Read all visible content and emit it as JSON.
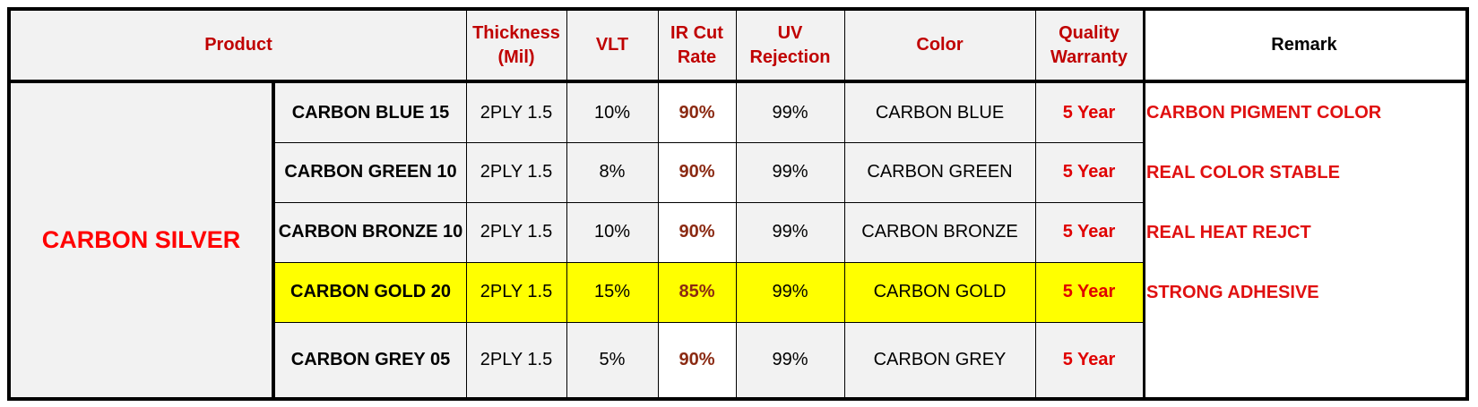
{
  "headers": {
    "product": "Product",
    "thickness": "Thickness (Mil)",
    "vlt": "VLT",
    "ir": "IR Cut Rate",
    "uv": "UV Rejection",
    "color": "Color",
    "warranty": "Quality Warranty",
    "remark": "Remark"
  },
  "group_name": "CARBON SILVER",
  "rows": [
    {
      "name": "CARBON BLUE 15",
      "thickness": "2PLY 1.5",
      "vlt": "10%",
      "ir": "90%",
      "uv": "99%",
      "color": "CARBON BLUE",
      "warranty": "5 Year"
    },
    {
      "name": "CARBON GREEN 10",
      "thickness": "2PLY 1.5",
      "vlt": "8%",
      "ir": "90%",
      "uv": "99%",
      "color": "CARBON GREEN",
      "warranty": "5 Year"
    },
    {
      "name": "CARBON BRONZE 10",
      "thickness": "2PLY 1.5",
      "vlt": "10%",
      "ir": "90%",
      "uv": "99%",
      "color": "CARBON BRONZE",
      "warranty": "5 Year"
    },
    {
      "name": "CARBON GOLD 20",
      "thickness": "2PLY 1.5",
      "vlt": "15%",
      "ir": "85%",
      "uv": "99%",
      "color": "CARBON GOLD",
      "warranty": "5 Year"
    },
    {
      "name": "CARBON GREY 05",
      "thickness": "2PLY 1.5",
      "vlt": "5%",
      "ir": "90%",
      "uv": "99%",
      "color": "CARBON GREY",
      "warranty": "5 Year"
    }
  ],
  "remarks": [
    "CARBON PIGMENT COLOR",
    "REAL COLOR STABLE",
    "REAL HEAT REJCT",
    "STRONG ADHESIVE"
  ],
  "colors": {
    "header_red": "#c00000",
    "warranty_red": "#e00000",
    "ir_brown": "#8b2a12",
    "highlight": "#ffff00",
    "cell_bg": "#f2f2f2"
  }
}
